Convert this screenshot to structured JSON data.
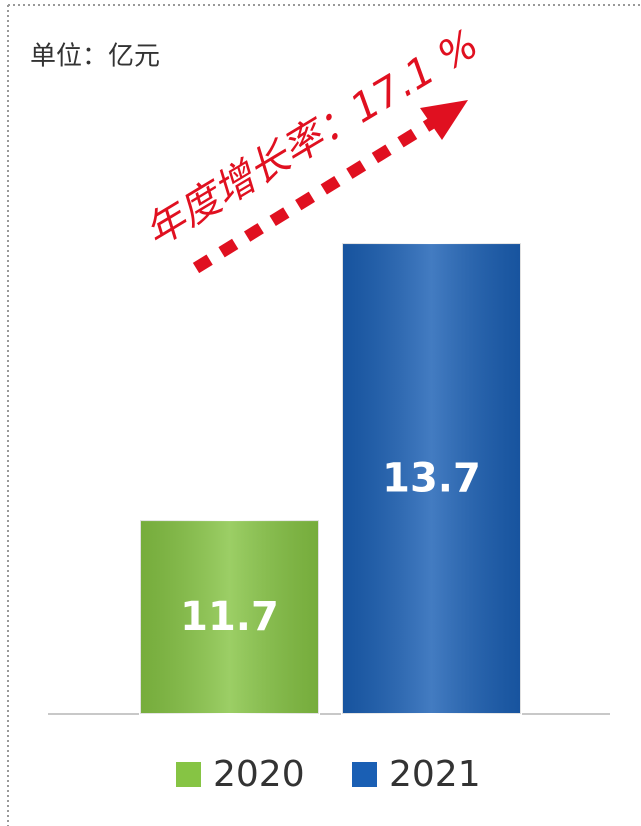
{
  "chart_data": {
    "type": "bar",
    "subtitle": "单位：亿元",
    "annotation": "年度增长率：17.1 %",
    "categories": [
      "2020",
      "2021"
    ],
    "values": [
      11.7,
      13.7
    ],
    "colors": [
      "#86c444",
      "#1a5fb4"
    ],
    "ylim": [
      10.3,
      14.0
    ],
    "legend": "bottom"
  }
}
